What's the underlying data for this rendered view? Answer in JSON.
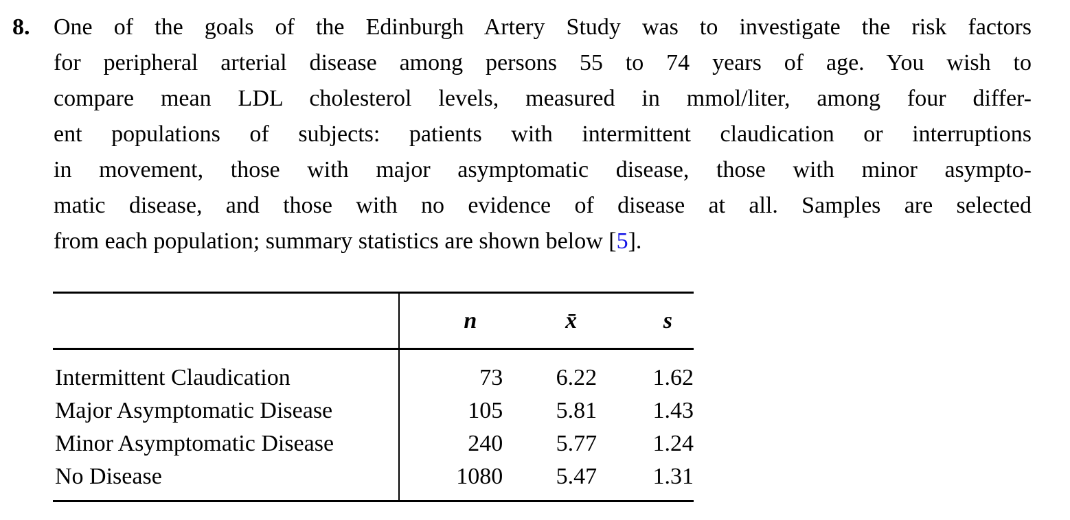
{
  "exercise": {
    "number": "8.",
    "paragraph_lines": [
      "One of the goals of the Edinburgh Artery Study was to investigate the risk factors",
      "for peripheral arterial disease among persons 55 to 74 years of age. You wish to",
      "compare mean LDL cholesterol levels, measured in mmol/liter, among four differ-",
      "ent populations of subjects: patients with intermittent claudication or interruptions",
      "in movement, those with major asymptomatic disease, those with minor asympto-",
      "matic disease, and those with no evidence of disease at all. Samples are selected"
    ],
    "last_line": {
      "before_ref": "from each population; summary statistics are shown below [",
      "ref": "5",
      "after_ref": "]."
    }
  },
  "table": {
    "header": {
      "n": "n",
      "xbar": "x̄",
      "s": "s"
    },
    "rows": [
      {
        "label": "Intermittent Claudication",
        "n": "73",
        "xbar": "6.22",
        "s": "1.62"
      },
      {
        "label": "Major Asymptomatic Disease",
        "n": "105",
        "xbar": "5.81",
        "s": "1.43"
      },
      {
        "label": "Minor Asymptomatic Disease",
        "n": "240",
        "xbar": "5.77",
        "s": "1.24"
      },
      {
        "label": "No Disease",
        "n": "1080",
        "xbar": "5.47",
        "s": "1.31"
      }
    ]
  },
  "colors": {
    "text": "#000000",
    "reference_link": "#1414e6",
    "rule": "#000000",
    "background": "#ffffff"
  }
}
